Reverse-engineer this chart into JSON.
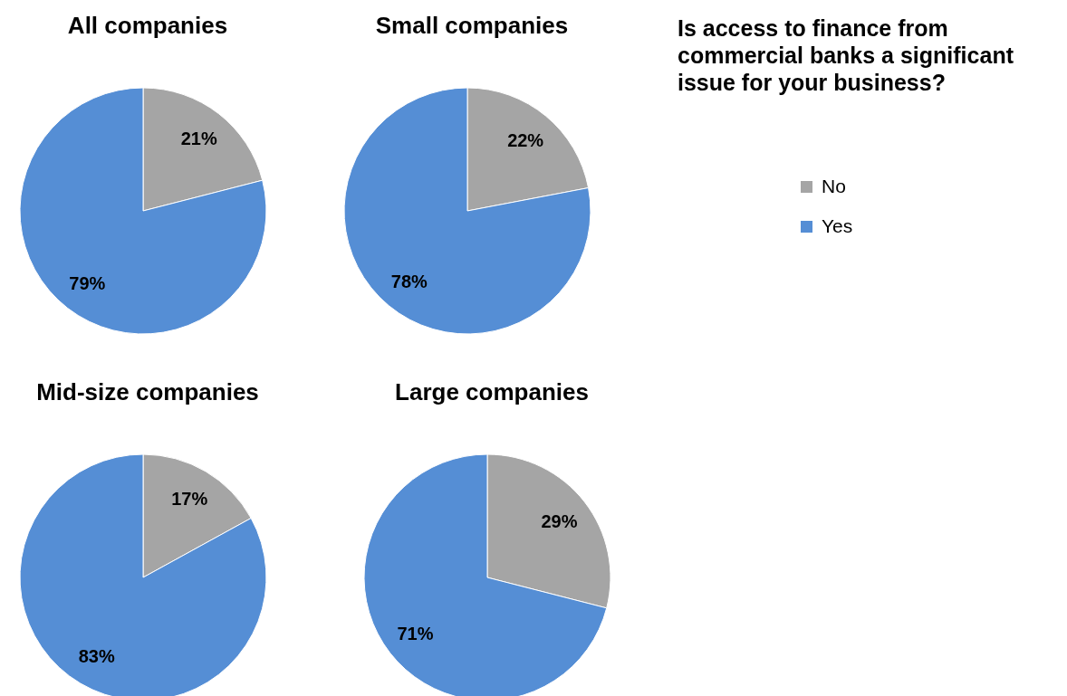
{
  "chart_data": {
    "type": "pie",
    "title": "Is access to finance from commercial banks a significant issue for your business?",
    "categories": [
      "No",
      "Yes"
    ],
    "colors": [
      "#a5a5a5",
      "#558ed5"
    ],
    "legend": "right",
    "series": [
      {
        "name": "All companies",
        "values": [
          21,
          79
        ],
        "value_labels": [
          "21%",
          "79%"
        ]
      },
      {
        "name": "Small companies",
        "values": [
          22,
          78
        ],
        "value_labels": [
          "22%",
          "78%"
        ]
      },
      {
        "name": "Mid-size companies",
        "values": [
          17,
          83
        ],
        "value_labels": [
          "17%",
          "83%"
        ]
      },
      {
        "name": "Large companies",
        "values": [
          29,
          71
        ],
        "value_labels": [
          "29%",
          "71%"
        ]
      }
    ]
  }
}
